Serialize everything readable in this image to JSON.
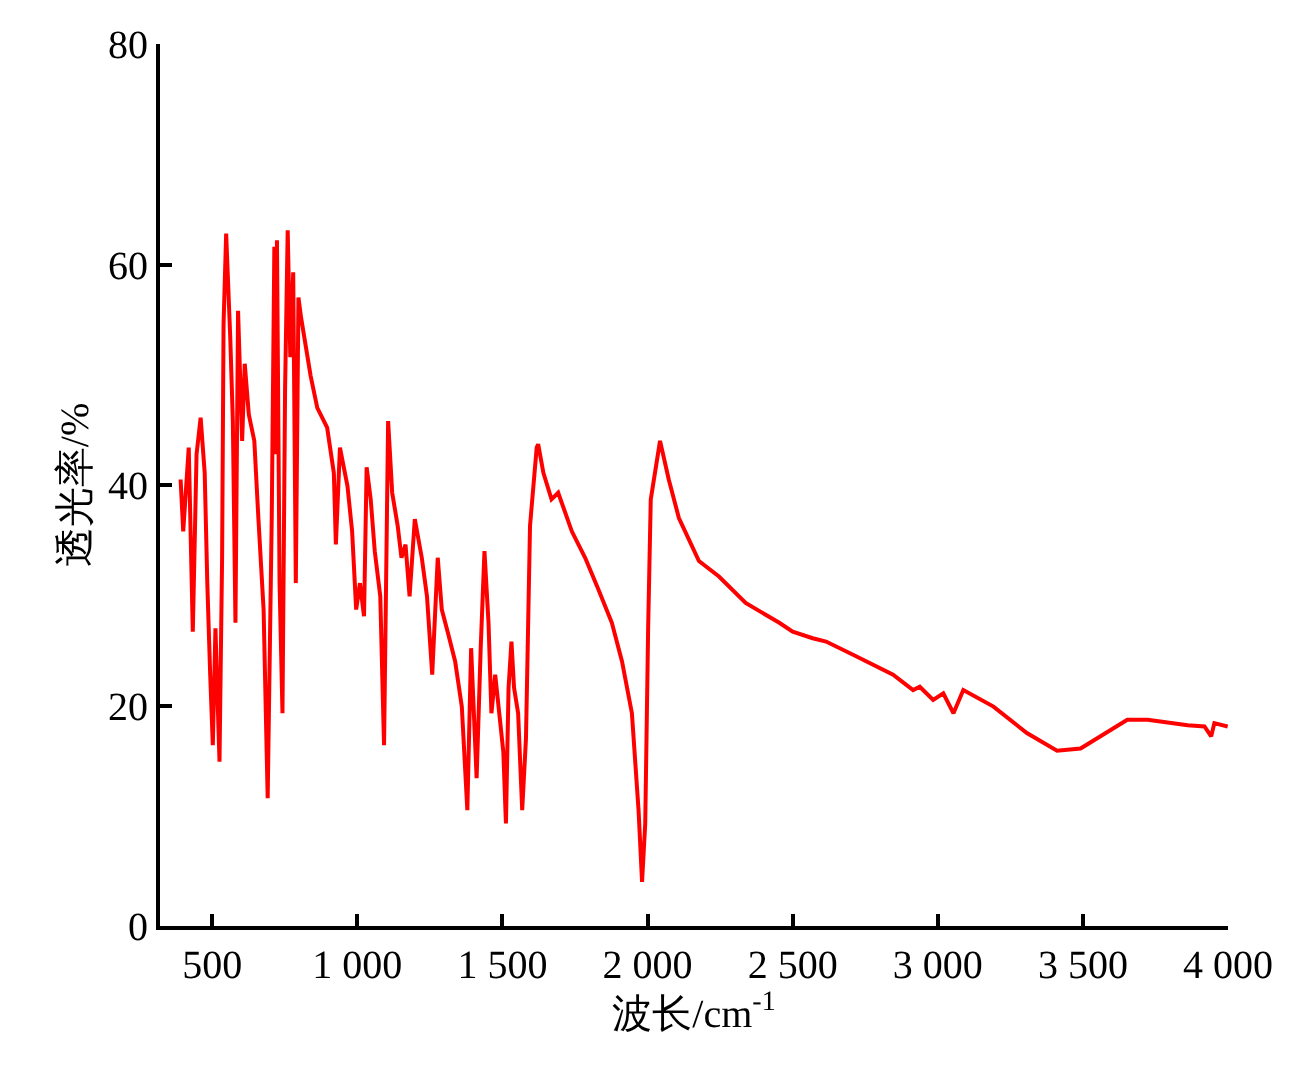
{
  "chart_data": {
    "type": "line",
    "xlabel": "波长/cm$^{-1}$",
    "ylabel": "透光率/%",
    "xlim": [
      320,
      4000
    ],
    "ylim": [
      0,
      80
    ],
    "xticks": [
      {
        "value": 500,
        "label": "500"
      },
      {
        "value": 1000,
        "label": "1 000"
      },
      {
        "value": 1500,
        "label": "1 500"
      },
      {
        "value": 2000,
        "label": "2 000"
      },
      {
        "value": 2500,
        "label": "2 500"
      },
      {
        "value": 3000,
        "label": "3 000"
      },
      {
        "value": 3500,
        "label": "3 500"
      },
      {
        "value": 4000,
        "label": "4 000"
      }
    ],
    "yticks": [
      0,
      20,
      40,
      60,
      80
    ],
    "grid": false,
    "marker": "none",
    "line_style": "solid",
    "series": [
      {
        "color": "#ff0000",
        "x": [
          391,
          400,
          419,
          433,
          446,
          460,
          474,
          483,
          493,
          502,
          511,
          525,
          534,
          539,
          548,
          562,
          571,
          580,
          589,
          603,
          612,
          626,
          645,
          659,
          677,
          691,
          705,
          714,
          719,
          723,
          732,
          742,
          751,
          760,
          769,
          779,
          788,
          797,
          806,
          839,
          862,
          896,
          919,
          926,
          940,
          966,
          982,
          996,
          1009,
          1023,
          1032,
          1046,
          1060,
          1079,
          1092,
          1106,
          1120,
          1139,
          1152,
          1166,
          1180,
          1198,
          1222,
          1240,
          1258,
          1277,
          1291,
          1314,
          1337,
          1360,
          1379,
          1392,
          1411,
          1425,
          1438,
          1452,
          1462,
          1475,
          1489,
          1503,
          1512,
          1521,
          1531,
          1540,
          1554,
          1568,
          1581,
          1595,
          1618,
          1623,
          1641,
          1669,
          1692,
          1739,
          1785,
          1831,
          1877,
          1912,
          1946,
          1969,
          1981,
          1992,
          2002,
          2011,
          2043,
          2073,
          2108,
          2177,
          2246,
          2338,
          2454,
          2500,
          2569,
          2615,
          2708,
          2846,
          2915,
          2938,
          2984,
          3019,
          3054,
          3088,
          3192,
          3307,
          3411,
          3492,
          3653,
          3723,
          3861,
          3919,
          3942,
          3953,
          3999
        ],
        "values": [
          40.5,
          35.8,
          43.4,
          26.7,
          42.8,
          46.1,
          41.1,
          31.1,
          22.8,
          16.4,
          27,
          14.9,
          33.4,
          54.6,
          62.8,
          53.4,
          45.8,
          27.5,
          55.8,
          44,
          51,
          46.4,
          44,
          37,
          28.7,
          11.6,
          37,
          61.6,
          42.8,
          62.2,
          31.1,
          19.3,
          48.7,
          63.1,
          51.6,
          59.3,
          31.1,
          57,
          55.2,
          49.9,
          47,
          45.2,
          41.1,
          34.6,
          43.4,
          39.9,
          35.8,
          28.7,
          31.1,
          28.1,
          41.6,
          38.7,
          34,
          29.9,
          16.4,
          45.8,
          39.3,
          36.3,
          33.4,
          34.6,
          29.9,
          36.9,
          33.4,
          29.9,
          22.8,
          33.4,
          28.7,
          26.4,
          24,
          19.9,
          10.5,
          25.2,
          13.4,
          25.2,
          34,
          27.5,
          19.3,
          22.8,
          19.3,
          15.8,
          9.3,
          21.6,
          25.8,
          21.6,
          19.3,
          10.5,
          17,
          36.3,
          43.4,
          43.7,
          41.1,
          38.7,
          39.3,
          35.8,
          33.4,
          30.5,
          27.5,
          24,
          19.3,
          10.5,
          4,
          9.3,
          27,
          38.7,
          44,
          40.5,
          37,
          33.1,
          31.7,
          29.3,
          27.5,
          26.7,
          26.1,
          25.8,
          24.6,
          22.8,
          21.4,
          21.7,
          20.5,
          21.1,
          19.3,
          21.4,
          19.9,
          17.5,
          15.9,
          16.1,
          18.7,
          18.7,
          18.2,
          18.1,
          17.2,
          18.4,
          18.1
        ]
      }
    ]
  }
}
